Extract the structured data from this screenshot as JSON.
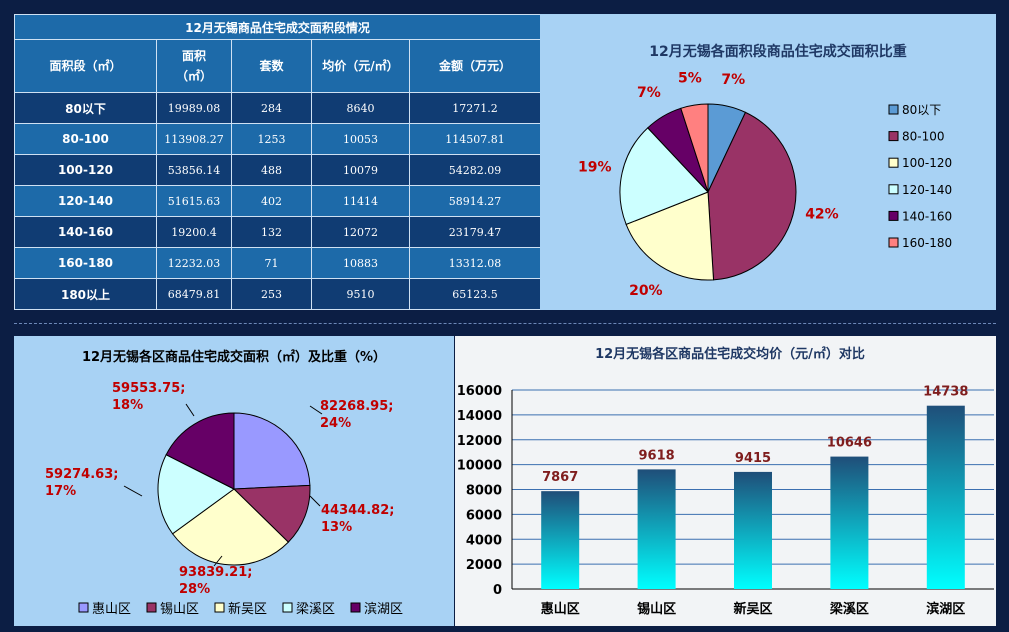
{
  "table": {
    "title": "12月无锡商品住宅成交面积段情况",
    "headers": [
      "面积段（㎡）",
      "面积",
      "（㎡）",
      "套数",
      "均价（元/㎡）",
      "金额（万元）"
    ],
    "rows": [
      {
        "seg": "80以下",
        "area": "19989.08",
        "units": "284",
        "price": "8640",
        "amount": "17271.2"
      },
      {
        "seg": "80-100",
        "area": "113908.27",
        "units": "1253",
        "price": "10053",
        "amount": "114507.81"
      },
      {
        "seg": "100-120",
        "area": "53856.14",
        "units": "488",
        "price": "10079",
        "amount": "54282.09"
      },
      {
        "seg": "120-140",
        "area": "51615.63",
        "units": "402",
        "price": "11414",
        "amount": "58914.27"
      },
      {
        "seg": "140-160",
        "area": "19200.4",
        "units": "132",
        "price": "12072",
        "amount": "23179.47"
      },
      {
        "seg": "160-180",
        "area": "12232.03",
        "units": "71",
        "price": "10883",
        "amount": "13312.08"
      },
      {
        "seg": "180以上",
        "area": "68479.81",
        "units": "253",
        "price": "9510",
        "amount": "65123.5"
      }
    ]
  },
  "chart_data": [
    {
      "type": "pie",
      "title": "12月无锡各面积段商品住宅成交面积比重",
      "legend_position": "right",
      "slices": [
        {
          "name": "80以下",
          "value": 7,
          "label": "7%",
          "color": "#5b9bd5"
        },
        {
          "name": "80-100",
          "value": 42,
          "label": "42%",
          "color": "#993366"
        },
        {
          "name": "100-120",
          "value": 20,
          "label": "20%",
          "color": "#ffffcc"
        },
        {
          "name": "120-140",
          "value": 19,
          "label": "19%",
          "color": "#ccffff"
        },
        {
          "name": "140-160",
          "value": 7,
          "label": "7%",
          "color": "#660066"
        },
        {
          "name": "160-180",
          "value": 5,
          "label": "5%",
          "color": "#ff8080"
        }
      ]
    },
    {
      "type": "pie",
      "title": "12月无锡各区商品住宅成交面积（㎡）及比重（%）",
      "legend_position": "bottom",
      "slices": [
        {
          "name": "惠山区",
          "value": 82268.95,
          "label_value": "82268.95;",
          "label_pct": "24%",
          "color": "#9999ff"
        },
        {
          "name": "锡山区",
          "value": 44344.82,
          "label_value": "44344.82;",
          "label_pct": "13%",
          "color": "#993366"
        },
        {
          "name": "新吴区",
          "value": 93839.21,
          "label_value": "93839.21;",
          "label_pct": "28%",
          "color": "#ffffcc"
        },
        {
          "name": "梁溪区",
          "value": 59274.63,
          "label_value": "59274.63;",
          "label_pct": "17%",
          "color": "#ccffff"
        },
        {
          "name": "滨湖区",
          "value": 59553.75,
          "label_value": "59553.75;",
          "label_pct": "18%",
          "color": "#660066"
        }
      ]
    },
    {
      "type": "bar",
      "title": "12月无锡各区商品住宅成交均价（元/㎡）对比",
      "categories": [
        "惠山区",
        "锡山区",
        "新吴区",
        "梁溪区",
        "滨湖区"
      ],
      "values": [
        7867,
        9618,
        9415,
        10646,
        14738
      ],
      "ylim": [
        0,
        16000
      ],
      "yticks": [
        0,
        2000,
        4000,
        6000,
        8000,
        10000,
        12000,
        14000,
        16000
      ],
      "grid": true
    }
  ],
  "colors": {
    "label_red": "#c00000",
    "title_navy": "#1f3864",
    "bar_top": "#1f4e79",
    "bar_bottom": "#00ffff"
  }
}
